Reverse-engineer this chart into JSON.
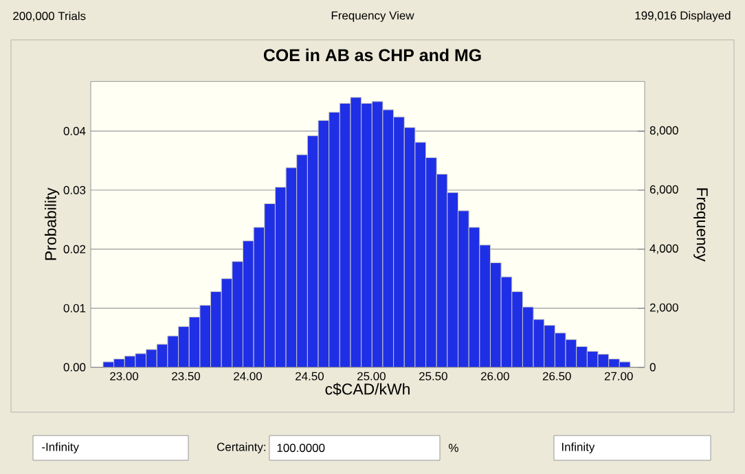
{
  "chart_data": {
    "type": "histogram",
    "title": "COE in AB as CHP and MG",
    "xlabel": "c$CAD/kWh",
    "ylabel": "Probability",
    "y2label": "Frequency",
    "annotations": [
      "200,000 Trials",
      "Frequency View",
      "199,016 Displayed",
      "-Infinity",
      "Certainty:",
      "100.0000",
      "%",
      "Infinity"
    ],
    "bins": [
      22.83,
      22.917,
      23.004,
      23.091,
      23.178,
      23.265,
      23.352,
      23.439,
      23.526,
      23.613,
      23.7,
      23.787,
      23.874,
      23.961,
      24.048,
      24.135,
      24.222,
      24.309,
      24.396,
      24.483,
      24.57,
      24.657,
      24.744,
      24.831,
      24.918,
      25.005,
      25.092,
      25.179,
      25.266,
      25.353,
      25.44,
      25.527,
      25.614,
      25.701,
      25.788,
      25.875,
      25.962,
      26.049,
      26.136,
      26.223,
      26.31,
      26.397,
      26.484,
      26.571,
      26.658,
      26.745,
      26.832,
      26.919,
      27.006,
      27.093
    ],
    "values": [
      0.0009,
      0.0014,
      0.0019,
      0.0023,
      0.003,
      0.0039,
      0.0053,
      0.0069,
      0.0085,
      0.0105,
      0.0128,
      0.015,
      0.0179,
      0.0214,
      0.0237,
      0.0277,
      0.0305,
      0.0338,
      0.036,
      0.0392,
      0.0418,
      0.0432,
      0.0447,
      0.0457,
      0.0447,
      0.045,
      0.0436,
      0.0424,
      0.0406,
      0.0381,
      0.0355,
      0.0327,
      0.0296,
      0.0265,
      0.0237,
      0.0207,
      0.0177,
      0.0153,
      0.0128,
      0.0102,
      0.0081,
      0.0071,
      0.0058,
      0.0047,
      0.0035,
      0.0027,
      0.0022,
      0.0014,
      0.0009
    ],
    "color": "#1f2fe6",
    "xlim": [
      22.73,
      27.21
    ],
    "xticks": [
      {
        "value": 23,
        "label": "23.00"
      },
      {
        "value": 23.5,
        "label": "23.50"
      },
      {
        "value": 24,
        "label": "24.00"
      },
      {
        "value": 24.5,
        "label": "24.50"
      },
      {
        "value": 25,
        "label": "25.00"
      },
      {
        "value": 25.5,
        "label": "25.50"
      },
      {
        "value": 26,
        "label": "26.00"
      },
      {
        "value": 26.5,
        "label": "26.50"
      },
      {
        "value": 27,
        "label": "27.00"
      }
    ],
    "ylim": [
      0,
      0.0484
    ],
    "yticks": [
      {
        "value": 0,
        "label": "0.00"
      },
      0.01,
      0.02,
      0.03,
      0.04
    ],
    "y2lim": [
      0,
      9680
    ],
    "y2ticks": [
      0,
      {
        "value": 2000,
        "label": "2,000"
      },
      {
        "value": 4000,
        "label": "4,000"
      },
      {
        "value": 6000,
        "label": "6,000"
      },
      {
        "value": 8000,
        "label": "8,000"
      }
    ],
    "grid": "y"
  }
}
